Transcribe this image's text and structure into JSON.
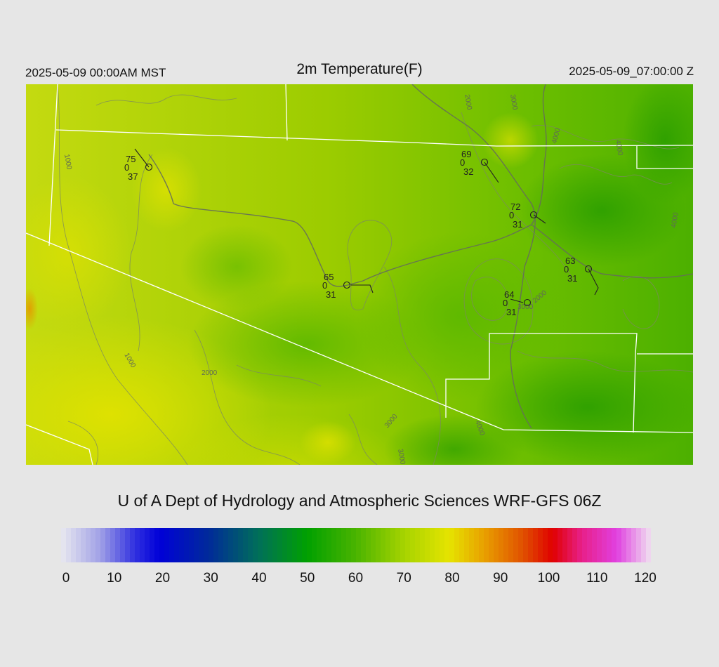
{
  "header": {
    "local_time": "2025-05-09 00:00AM MST",
    "title": "2m Temperature(F)",
    "utc_time": "2025-05-09_07:00:00 Z"
  },
  "footer": {
    "credit": "U of A Dept of Hydrology and Atmospheric Sciences WRF-GFS 06Z"
  },
  "colorbar": {
    "min": 0,
    "max": 120,
    "ticks": [
      "0",
      "10",
      "20",
      "30",
      "40",
      "50",
      "60",
      "70",
      "80",
      "90",
      "100",
      "110",
      "120"
    ],
    "stops": [
      {
        "v": 0,
        "c": "#e8e8f0"
      },
      {
        "v": 8,
        "c": "#a0a0e6"
      },
      {
        "v": 15,
        "c": "#3030e0"
      },
      {
        "v": 20,
        "c": "#0000d8"
      },
      {
        "v": 30,
        "c": "#002a9a"
      },
      {
        "v": 40,
        "c": "#006e5a"
      },
      {
        "v": 50,
        "c": "#00a000"
      },
      {
        "v": 60,
        "c": "#4ab400"
      },
      {
        "v": 70,
        "c": "#a8d400"
      },
      {
        "v": 79,
        "c": "#e6e400"
      },
      {
        "v": 86,
        "c": "#e8a000"
      },
      {
        "v": 94,
        "c": "#e05000"
      },
      {
        "v": 100,
        "c": "#e00000"
      },
      {
        "v": 106,
        "c": "#e8208a"
      },
      {
        "v": 113,
        "c": "#e040e0"
      },
      {
        "v": 120,
        "c": "#f0e0f0"
      }
    ]
  },
  "map": {
    "contour_labels": [
      "1000",
      "1000",
      "2000",
      "2000",
      "3000",
      "3000",
      "3000",
      "4000",
      "4000",
      "4000",
      "4000",
      "2000",
      "3000"
    ],
    "stations": [
      {
        "name": "station-1",
        "temp": "75",
        "mid": "0",
        "dew": "37"
      },
      {
        "name": "station-2",
        "temp": "69",
        "mid": "0",
        "dew": "32"
      },
      {
        "name": "station-3",
        "temp": "72",
        "mid": "0",
        "dew": "31"
      },
      {
        "name": "station-4",
        "temp": "65",
        "mid": "0",
        "dew": "31"
      },
      {
        "name": "station-5",
        "temp": "63",
        "mid": "0",
        "dew": "31"
      },
      {
        "name": "station-6",
        "temp": "64",
        "mid": "0",
        "dew": "31"
      }
    ]
  }
}
